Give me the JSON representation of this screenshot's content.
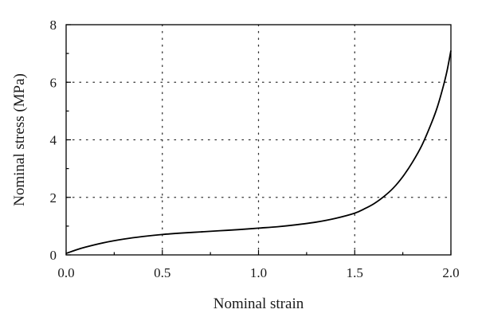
{
  "chart_data": {
    "type": "line",
    "title": "",
    "xlabel": "Nominal strain",
    "ylabel": "Nominal stress (MPa)",
    "xlim": [
      0.0,
      2.0
    ],
    "ylim": [
      0,
      8
    ],
    "x_ticks": [
      "0.0",
      "0.5",
      "1.0",
      "1.5",
      "2.0"
    ],
    "y_ticks": [
      "0",
      "2",
      "4",
      "6",
      "8"
    ],
    "x_tick_values": [
      0.0,
      0.5,
      1.0,
      1.5,
      2.0
    ],
    "y_tick_values": [
      0,
      2,
      4,
      6,
      8
    ],
    "grid": true,
    "grid_style": "dotted",
    "legend": "none",
    "series": [
      {
        "color": "#000000",
        "x": [
          0.0,
          0.05,
          0.1,
          0.2,
          0.3,
          0.4,
          0.5,
          0.6,
          0.7,
          0.8,
          0.9,
          1.0,
          1.1,
          1.2,
          1.3,
          1.4,
          1.5,
          1.55,
          1.6,
          1.65,
          1.7,
          1.75,
          1.8,
          1.85,
          1.9,
          1.93,
          1.96,
          1.98,
          2.0
        ],
        "y": [
          0.05,
          0.17,
          0.27,
          0.43,
          0.55,
          0.64,
          0.71,
          0.76,
          0.8,
          0.84,
          0.88,
          0.93,
          0.98,
          1.05,
          1.14,
          1.27,
          1.45,
          1.6,
          1.78,
          2.02,
          2.32,
          2.72,
          3.22,
          3.82,
          4.6,
          5.15,
          5.85,
          6.4,
          7.1
        ]
      }
    ]
  }
}
